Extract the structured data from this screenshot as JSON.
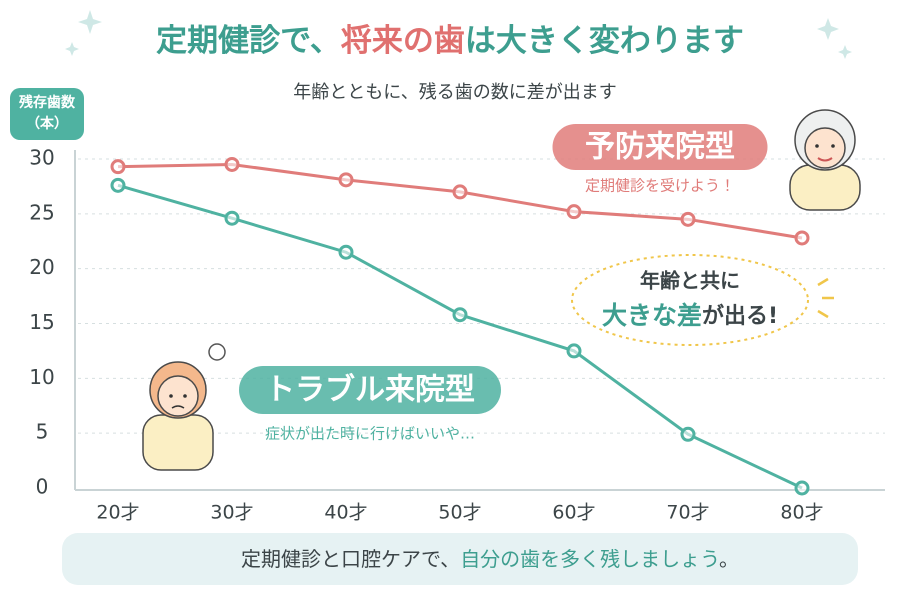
{
  "chart_data": {
    "type": "line",
    "title": [
      "定期健診で、",
      "将来の歯",
      "は大きく変わります"
    ],
    "subtitle": "年齢とともに、残る歯の数に差が出ます",
    "y_label": [
      "残存歯数",
      "（本）"
    ],
    "categories": [
      "20才",
      "30才",
      "40才",
      "50才",
      "60才",
      "70才",
      "80才"
    ],
    "series": [
      {
        "name": "予防来院型",
        "color": "#e07c7a",
        "note": "定期健診を受けよう！",
        "values": [
          29.3,
          29.5,
          28.1,
          27.0,
          25.2,
          24.5,
          22.8
        ]
      },
      {
        "name": "トラブル来院型",
        "color": "#4fb2a1",
        "note": "症状が出た時に行けばいいや…",
        "values": [
          27.6,
          24.6,
          21.5,
          15.8,
          12.5,
          4.9,
          0
        ]
      }
    ],
    "callout": [
      "年齢と共に",
      "大きな差",
      "が出る!"
    ],
    "footer": [
      "定期健診と口腔ケアで、",
      "自分の歯を多く残しましょう",
      "。"
    ],
    "ylim": [
      0,
      30
    ],
    "yticks": [
      0,
      5,
      10,
      15,
      20,
      25,
      30
    ],
    "grid": true
  }
}
